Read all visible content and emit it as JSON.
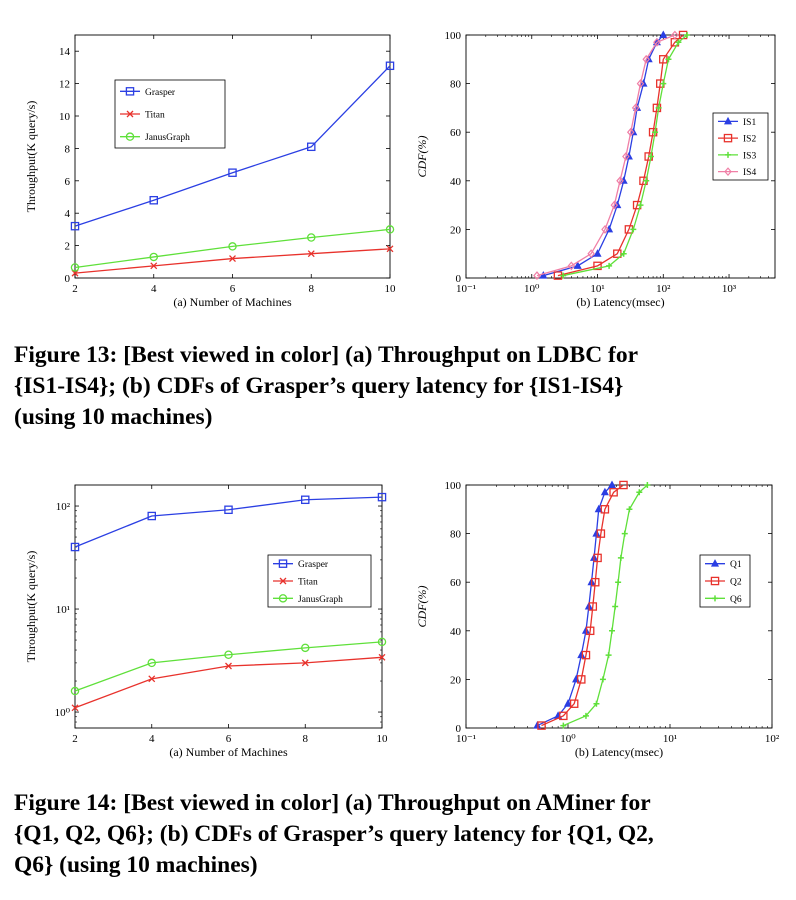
{
  "figure13": {
    "caption_line1": "Figure 13: [Best viewed in color] (a) Throughput on LDBC for",
    "caption_line2": "{IS1-IS4}; (b) CDFs of Grasper’s query latency for {IS1-IS4}",
    "caption_line3": "(using 10 machines)"
  },
  "figure14": {
    "caption_line1": "Figure 14: [Best viewed in color] (a) Throughput on AMiner for",
    "caption_line2": "{Q1, Q2, Q6}; (b) CDFs of Grasper’s query latency for {Q1, Q2,",
    "caption_line3": "Q6} (using 10 machines)"
  },
  "chart_data": [
    {
      "id": "fig13a",
      "type": "line",
      "xlabel": "(a) Number of Machines",
      "ylabel": "Throughput(K query/s)",
      "xscale": "linear",
      "yscale": "linear",
      "xlim": [
        2,
        10
      ],
      "ylim": [
        0,
        15
      ],
      "xticks": [
        2,
        4,
        6,
        8,
        10
      ],
      "yticks": [
        0,
        2,
        4,
        6,
        8,
        10,
        12,
        14
      ],
      "legend_position": "upper-left",
      "series": [
        {
          "name": "Grasper",
          "color": "#2b3fe3",
          "marker": "square",
          "x": [
            2,
            4,
            6,
            8,
            10
          ],
          "y": [
            3.2,
            4.8,
            6.5,
            8.1,
            13.1
          ]
        },
        {
          "name": "Titan",
          "color": "#e8322c",
          "marker": "x",
          "x": [
            2,
            4,
            6,
            8,
            10
          ],
          "y": [
            0.3,
            0.75,
            1.2,
            1.5,
            1.8
          ]
        },
        {
          "name": "JanusGraph",
          "color": "#5fe03a",
          "marker": "circle",
          "x": [
            2,
            4,
            6,
            8,
            10
          ],
          "y": [
            0.65,
            1.3,
            1.95,
            2.5,
            3.0
          ]
        }
      ]
    },
    {
      "id": "fig13b",
      "type": "line",
      "xlabel": "(b) Latency(msec)",
      "ylabel": "CDF(%)",
      "xscale": "log",
      "yscale": "linear",
      "xlim": [
        0.1,
        5000
      ],
      "ylim": [
        0,
        100
      ],
      "xticks": [
        0.1,
        1,
        10,
        100,
        1000
      ],
      "xtick_labels": [
        "10⁻¹",
        "10⁰",
        "10¹",
        "10²",
        "10³"
      ],
      "yticks": [
        0,
        20,
        40,
        60,
        80,
        100
      ],
      "legend_position": "right",
      "series": [
        {
          "name": "IS1",
          "color": "#2b3fe3",
          "marker": "triangle",
          "x": [
            1.5,
            5,
            10,
            15,
            20,
            25,
            30,
            35,
            40,
            50,
            60,
            80,
            100
          ],
          "y": [
            1,
            5,
            10,
            20,
            30,
            40,
            50,
            60,
            70,
            80,
            90,
            97,
            100
          ]
        },
        {
          "name": "IS2",
          "color": "#e8322c",
          "marker": "square",
          "x": [
            2.5,
            10,
            20,
            30,
            40,
            50,
            60,
            70,
            80,
            90,
            100,
            150,
            200
          ],
          "y": [
            1,
            5,
            10,
            20,
            30,
            40,
            50,
            60,
            70,
            80,
            90,
            97,
            100
          ]
        },
        {
          "name": "IS3",
          "color": "#5fe03a",
          "marker": "plus",
          "x": [
            3,
            15,
            25,
            35,
            45,
            55,
            65,
            75,
            85,
            100,
            120,
            170,
            230
          ],
          "y": [
            1,
            5,
            10,
            20,
            30,
            40,
            50,
            60,
            70,
            80,
            90,
            97,
            100
          ]
        },
        {
          "name": "IS4",
          "color": "#f07fa6",
          "marker": "diamond",
          "x": [
            1.2,
            4,
            8,
            13,
            18,
            22,
            27,
            32,
            38,
            45,
            55,
            80,
            150
          ],
          "y": [
            1,
            5,
            10,
            20,
            30,
            40,
            50,
            60,
            70,
            80,
            90,
            97,
            100
          ]
        }
      ]
    },
    {
      "id": "fig14a",
      "type": "line",
      "xlabel": "(a) Number of Machines",
      "ylabel": "Throughput(K query/s)",
      "xscale": "linear",
      "yscale": "log",
      "xlim": [
        2,
        10
      ],
      "ylim": [
        0.7,
        160
      ],
      "xticks": [
        2,
        4,
        6,
        8,
        10
      ],
      "yticks": [
        1,
        10,
        100
      ],
      "ytick_labels": [
        "10⁰",
        "10¹",
        "10²"
      ],
      "legend_position": "right",
      "series": [
        {
          "name": "Grasper",
          "color": "#2b3fe3",
          "marker": "square",
          "x": [
            2,
            4,
            6,
            8,
            10
          ],
          "y": [
            40,
            80,
            92,
            115,
            122
          ]
        },
        {
          "name": "Titan",
          "color": "#e8322c",
          "marker": "x",
          "x": [
            2,
            4,
            6,
            8,
            10
          ],
          "y": [
            1.1,
            2.1,
            2.8,
            3.0,
            3.4
          ]
        },
        {
          "name": "JanusGraph",
          "color": "#5fe03a",
          "marker": "circle",
          "x": [
            2,
            4,
            6,
            8,
            10
          ],
          "y": [
            1.6,
            3.0,
            3.6,
            4.2,
            4.8
          ]
        }
      ]
    },
    {
      "id": "fig14b",
      "type": "line",
      "xlabel": "(b) Latency(msec)",
      "ylabel": "CDF(%)",
      "xscale": "log",
      "yscale": "linear",
      "xlim": [
        0.1,
        100
      ],
      "ylim": [
        0,
        100
      ],
      "xticks": [
        0.1,
        1,
        10,
        100
      ],
      "xtick_labels": [
        "10⁻¹",
        "10⁰",
        "10¹",
        "10²"
      ],
      "yticks": [
        0,
        20,
        40,
        60,
        80,
        100
      ],
      "legend_position": "right",
      "series": [
        {
          "name": "Q1",
          "color": "#2b3fe3",
          "marker": "triangle",
          "x": [
            0.5,
            0.8,
            1.0,
            1.2,
            1.35,
            1.5,
            1.6,
            1.7,
            1.8,
            1.9,
            2.0,
            2.3,
            2.7
          ],
          "y": [
            1,
            5,
            10,
            20,
            30,
            40,
            50,
            60,
            70,
            80,
            90,
            97,
            100
          ]
        },
        {
          "name": "Q2",
          "color": "#e8322c",
          "marker": "square",
          "x": [
            0.55,
            0.9,
            1.15,
            1.35,
            1.5,
            1.65,
            1.75,
            1.85,
            1.95,
            2.1,
            2.3,
            2.8,
            3.5
          ],
          "y": [
            1,
            5,
            10,
            20,
            30,
            40,
            50,
            60,
            70,
            80,
            90,
            97,
            100
          ]
        },
        {
          "name": "Q6",
          "color": "#5fe03a",
          "marker": "plus",
          "x": [
            0.9,
            1.5,
            1.9,
            2.2,
            2.5,
            2.7,
            2.9,
            3.1,
            3.3,
            3.6,
            4.0,
            5.0,
            6.0
          ],
          "y": [
            1,
            5,
            10,
            20,
            30,
            40,
            50,
            60,
            70,
            80,
            90,
            97,
            100
          ]
        }
      ]
    }
  ]
}
